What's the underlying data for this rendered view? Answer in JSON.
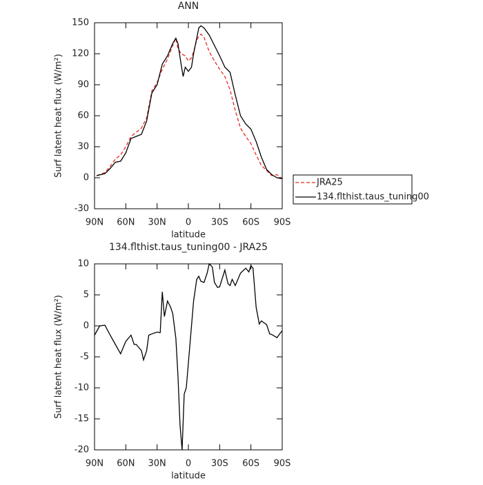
{
  "chart_data": [
    {
      "type": "line",
      "title": "ANN",
      "xlabel": "latitude",
      "ylabel": "Surf latent heat flux (W/m²)",
      "x": [
        88,
        80,
        75,
        70,
        65,
        60,
        55,
        50,
        45,
        40,
        35,
        30,
        25,
        20,
        15,
        12,
        10,
        7,
        5,
        3,
        0,
        -3,
        -5,
        -8,
        -10,
        -12,
        -15,
        -20,
        -25,
        -30,
        -35,
        -40,
        -45,
        -50,
        -55,
        -60,
        -65,
        -70,
        -75,
        -80,
        -85,
        -90
      ],
      "series": [
        {
          "name": "JRA25",
          "color": "#e8261f",
          "dash": true,
          "values": [
            2,
            5,
            11,
            18,
            22,
            30,
            40,
            44,
            48,
            58,
            84,
            92,
            105,
            115,
            128,
            135,
            125,
            120,
            119,
            118,
            113,
            116,
            122,
            133,
            137,
            139,
            136,
            122,
            113,
            105,
            98,
            85,
            65,
            48,
            40,
            33,
            22,
            12,
            7,
            2,
            3,
            -1
          ]
        },
        {
          "name": "134.flthist.taus_tuning00",
          "color": "#000000",
          "dash": false,
          "values": [
            2,
            4,
            9,
            15,
            16,
            24,
            38,
            40,
            42,
            55,
            82,
            90,
            110,
            118,
            130,
            135,
            130,
            110,
            98,
            107,
            103,
            107,
            120,
            135,
            145,
            147,
            145,
            138,
            128,
            118,
            107,
            102,
            80,
            60,
            52,
            47,
            35,
            20,
            8,
            3,
            0,
            -1
          ]
        }
      ],
      "xlim": [
        90,
        -90
      ],
      "xticks": [
        {
          "value": 90,
          "label": "90N"
        },
        {
          "value": 60,
          "label": "60N"
        },
        {
          "value": 30,
          "label": "30N"
        },
        0,
        {
          "value": -30,
          "label": "30S"
        },
        {
          "value": -60,
          "label": "60S"
        },
        {
          "value": -90,
          "label": "90S"
        }
      ],
      "ylim": [
        -30,
        150
      ],
      "yticks": [
        -30,
        0,
        30,
        60,
        90,
        120,
        150
      ],
      "legend": "right"
    },
    {
      "type": "line",
      "title": "134.flthist.taus_tuning00 - JRA25",
      "xlabel": "latitude",
      "ylabel": "Surf latent heat flux (W/m²)",
      "x": [
        90,
        85,
        80,
        75,
        70,
        65,
        60,
        55,
        52,
        50,
        45,
        43,
        40,
        38,
        35,
        30,
        27,
        25,
        23,
        20,
        17,
        15,
        12,
        10,
        8,
        6,
        4,
        2,
        0,
        -3,
        -5,
        -8,
        -10,
        -12,
        -15,
        -18,
        -20,
        -23,
        -25,
        -28,
        -30,
        -35,
        -38,
        -40,
        -42,
        -45,
        -50,
        -55,
        -58,
        -60,
        -62,
        -65,
        -68,
        -70,
        -75,
        -78,
        -80,
        -85,
        -88,
        -90
      ],
      "color": "#000000",
      "values": [
        -1.5,
        0,
        0.1,
        -1.5,
        -3,
        -4.5,
        -2.5,
        -1.5,
        -3,
        -3,
        -4,
        -5.5,
        -4,
        -1.5,
        -1.3,
        -1,
        -1.1,
        5.5,
        1.5,
        4,
        3,
        2,
        -2,
        -8,
        -16,
        -20,
        -11,
        -10,
        -6,
        0,
        4,
        7.5,
        8,
        7.2,
        7,
        8.5,
        10,
        9.5,
        7,
        6.2,
        6.3,
        9,
        6.8,
        6.5,
        7.5,
        6.5,
        8.5,
        9.3,
        8.7,
        9.7,
        9.3,
        3,
        0.3,
        0.8,
        0.2,
        -1.3,
        -1.4,
        -1.9,
        -1.2,
        -0.8
      ],
      "xlim": [
        90,
        -90
      ],
      "xticks": [
        {
          "value": 90,
          "label": "90N"
        },
        {
          "value": 60,
          "label": "60N"
        },
        {
          "value": 30,
          "label": "30N"
        },
        0,
        {
          "value": -30,
          "label": "30S"
        },
        {
          "value": -60,
          "label": "60S"
        },
        {
          "value": -90,
          "label": "90S"
        }
      ],
      "ylim": [
        -20,
        10
      ],
      "yticks": [
        -20,
        -15,
        -10,
        -5,
        0,
        5,
        10
      ]
    }
  ]
}
